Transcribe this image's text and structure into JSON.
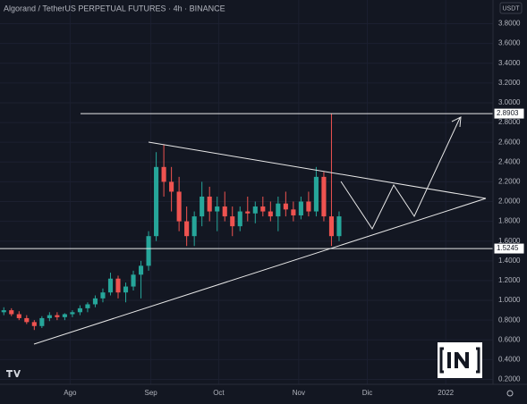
{
  "chart_data": {
    "type": "candlestick",
    "title": "Algorand / TetherUS PERPETUAL FUTURES · 4h · BINANCE",
    "currency": "USDT",
    "candles": [
      [
        0.88,
        0.93,
        0.85,
        0.9
      ],
      [
        0.9,
        0.92,
        0.84,
        0.86
      ],
      [
        0.86,
        0.89,
        0.8,
        0.82
      ],
      [
        0.82,
        0.85,
        0.76,
        0.78
      ],
      [
        0.78,
        0.8,
        0.7,
        0.74
      ],
      [
        0.74,
        0.84,
        0.72,
        0.82
      ],
      [
        0.82,
        0.88,
        0.79,
        0.85
      ],
      [
        0.85,
        0.88,
        0.8,
        0.83
      ],
      [
        0.83,
        0.87,
        0.8,
        0.86
      ],
      [
        0.86,
        0.9,
        0.83,
        0.88
      ],
      [
        0.88,
        0.95,
        0.85,
        0.92
      ],
      [
        0.92,
        0.98,
        0.88,
        0.96
      ],
      [
        0.96,
        1.05,
        0.93,
        1.02
      ],
      [
        1.02,
        1.12,
        0.98,
        1.08
      ],
      [
        1.08,
        1.28,
        1.05,
        1.22
      ],
      [
        1.22,
        1.25,
        1.02,
        1.08
      ],
      [
        1.08,
        1.18,
        0.98,
        1.14
      ],
      [
        1.14,
        1.3,
        1.1,
        1.26
      ],
      [
        1.26,
        1.4,
        1.02,
        1.35
      ],
      [
        1.35,
        1.7,
        1.3,
        1.65
      ],
      [
        1.65,
        2.5,
        1.6,
        2.35
      ],
      [
        2.35,
        2.58,
        2.05,
        2.2
      ],
      [
        2.2,
        2.35,
        1.9,
        2.1
      ],
      [
        2.1,
        2.25,
        1.7,
        1.8
      ],
      [
        1.8,
        1.95,
        1.55,
        1.65
      ],
      [
        1.65,
        1.9,
        1.55,
        1.85
      ],
      [
        1.85,
        2.2,
        1.75,
        2.05
      ],
      [
        2.05,
        2.15,
        1.8,
        1.9
      ],
      [
        1.9,
        2.05,
        1.7,
        1.95
      ],
      [
        1.95,
        2.1,
        1.8,
        1.85
      ],
      [
        1.85,
        1.95,
        1.65,
        1.75
      ],
      [
        1.75,
        1.95,
        1.7,
        1.9
      ],
      [
        1.9,
        2.05,
        1.8,
        1.88
      ],
      [
        1.88,
        2.0,
        1.78,
        1.95
      ],
      [
        1.95,
        2.05,
        1.85,
        1.9
      ],
      [
        1.9,
        2.0,
        1.8,
        1.85
      ],
      [
        1.85,
        2.05,
        1.7,
        1.98
      ],
      [
        1.98,
        2.1,
        1.85,
        1.92
      ],
      [
        1.92,
        2.0,
        1.8,
        1.86
      ],
      [
        1.86,
        2.05,
        1.82,
        2.0
      ],
      [
        2.0,
        2.1,
        1.85,
        1.9
      ],
      [
        1.9,
        2.35,
        1.85,
        2.25
      ],
      [
        2.25,
        2.3,
        1.8,
        1.85
      ],
      [
        1.85,
        2.89,
        1.55,
        1.65
      ],
      [
        1.65,
        1.9,
        1.6,
        1.85
      ]
    ],
    "up_color": "#26a69a",
    "down_color": "#ef5350",
    "levels": [
      2.8903,
      1.5245
    ],
    "xlim": [
      -0.5,
      64.2
    ],
    "xticks": [
      {
        "value": 8.7,
        "label": "Ago"
      },
      {
        "value": 19.3,
        "label": "Sep"
      },
      {
        "value": 28.2,
        "label": "Oct"
      },
      {
        "value": 38.7,
        "label": "Nov"
      },
      {
        "value": 47.7,
        "label": "Dic"
      },
      {
        "value": 58.0,
        "label": "2022"
      }
    ],
    "ylim": [
      0.15,
      4.04
    ],
    "yticks": [
      {
        "value": 0.2,
        "label": "0.2000"
      },
      {
        "value": 0.4,
        "label": "0.4000"
      },
      {
        "value": 0.6,
        "label": "0.6000"
      },
      {
        "value": 0.8,
        "label": "0.8000"
      },
      {
        "value": 1.0,
        "label": "1.0000"
      },
      {
        "value": 1.2,
        "label": "1.2000"
      },
      {
        "value": 1.4,
        "label": "1.4000"
      },
      {
        "value": 1.6,
        "label": "1.6000"
      },
      {
        "value": 1.8,
        "label": "1.8000"
      },
      {
        "value": 2.0,
        "label": "2.0000"
      },
      {
        "value": 2.2,
        "label": "2.2000"
      },
      {
        "value": 2.4,
        "label": "2.4000"
      },
      {
        "value": 2.6,
        "label": "2.6000"
      },
      {
        "value": 2.8,
        "label": "2.8000"
      },
      {
        "value": 3.0,
        "label": "3.0000"
      },
      {
        "value": 3.2,
        "label": "3.2000"
      },
      {
        "value": 3.4,
        "label": "3.4000"
      },
      {
        "value": 3.6,
        "label": "3.6000"
      },
      {
        "value": 3.8,
        "label": "3.8000"
      }
    ],
    "grid": true
  }
}
